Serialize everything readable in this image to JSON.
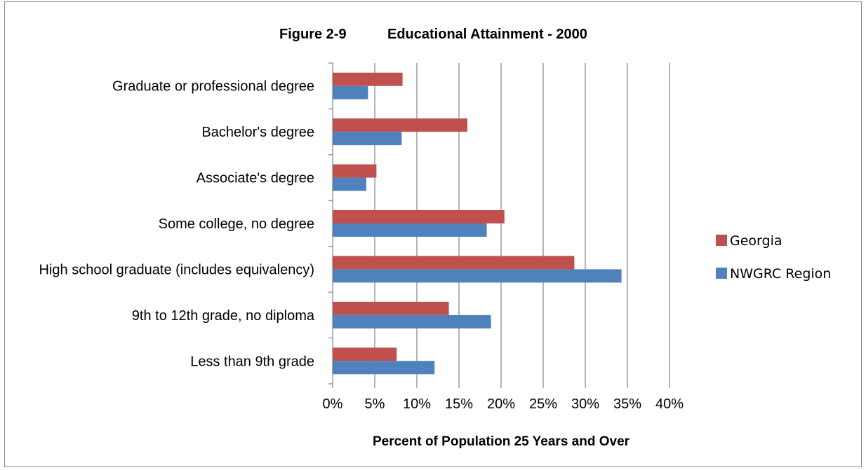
{
  "chart_data": {
    "type": "bar",
    "orientation": "horizontal",
    "title_number": "Figure 2-9",
    "title": "Educational Attainment - 2000",
    "xlabel": "Percent of Population 25 Years and Over",
    "ylabel": "",
    "xlim": [
      0,
      0.4
    ],
    "x_ticks": [
      "0%",
      "5%",
      "10%",
      "15%",
      "20%",
      "25%",
      "30%",
      "35%",
      "40%"
    ],
    "grid": "vertical gridlines",
    "legend_position": "right",
    "categories": [
      "Graduate or professional degree",
      "Bachelor's degree",
      "Associate's degree",
      "Some college, no degree",
      "High school graduate (includes equivalency)",
      "9th to 12th grade, no diploma",
      "Less than 9th grade"
    ],
    "series": [
      {
        "name": "Georgia",
        "color": "#c0504d",
        "values": [
          0.083,
          0.16,
          0.052,
          0.204,
          0.287,
          0.138,
          0.076
        ]
      },
      {
        "name": "NWGRC Region",
        "color": "#4f81bd",
        "values": [
          0.042,
          0.082,
          0.04,
          0.183,
          0.343,
          0.188,
          0.121
        ]
      }
    ]
  }
}
